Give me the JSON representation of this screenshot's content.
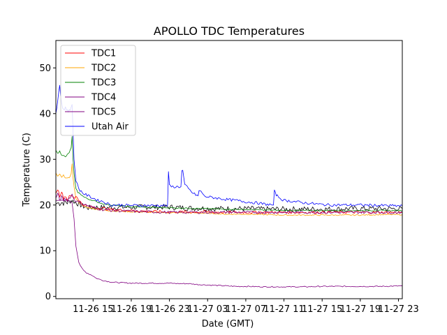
{
  "chart_data": {
    "type": "line",
    "title": "APOLLO TDC Temperatures",
    "xlabel": "Date (GMT)",
    "ylabel": "Temperature (C)",
    "x_unit": "hours since 11-26 11:00 GMT",
    "xlim": [
      0.1,
      36.4
    ],
    "ylim": [
      -0.5,
      56
    ],
    "y_ticks": [
      0,
      10,
      20,
      30,
      40,
      50
    ],
    "x_ticks": [
      {
        "x": 4,
        "label": "11-26 15"
      },
      {
        "x": 8,
        "label": "11-26 19"
      },
      {
        "x": 12,
        "label": "11-26 23"
      },
      {
        "x": 16,
        "label": "11-27 03"
      },
      {
        "x": 20,
        "label": "11-27 07"
      },
      {
        "x": 24,
        "label": "11-27 11"
      },
      {
        "x": 28,
        "label": "11-27 15"
      },
      {
        "x": 32,
        "label": "11-27 19"
      },
      {
        "x": 36,
        "label": "11-27 23"
      }
    ],
    "legend_position": "top-left",
    "series": [
      {
        "name": "TDC1",
        "color": "#ff0000",
        "x": [
          0.1,
          0.3,
          0.5,
          0.7,
          0.9,
          1.1,
          1.3,
          1.5,
          1.8,
          2.0,
          2.2,
          2.4,
          2.6,
          2.8,
          3.0,
          3.5,
          4.0,
          4.5,
          5.0,
          5.5,
          6.0,
          7.0,
          8.0,
          9.0,
          10.0,
          12.0,
          14.0,
          16.0,
          18.0,
          20.0,
          22.0,
          24.0,
          26.0,
          28.0,
          30.0,
          32.0,
          34.0,
          36.4
        ],
        "y": [
          22.5,
          23.5,
          22.0,
          23.0,
          21.5,
          22.0,
          21.2,
          21.8,
          22.0,
          21.5,
          22.0,
          21.5,
          20.8,
          20.4,
          20.0,
          19.7,
          19.5,
          19.4,
          19.3,
          19.1,
          19.0,
          18.9,
          18.8,
          18.7,
          18.6,
          18.5,
          18.5,
          18.5,
          18.4,
          18.4,
          18.4,
          18.4,
          18.4,
          18.4,
          18.4,
          18.4,
          18.4,
          18.4
        ]
      },
      {
        "name": "TDC2",
        "color": "#ffa500",
        "x": [
          0.1,
          0.3,
          0.5,
          0.7,
          0.9,
          1.1,
          1.3,
          1.5,
          1.7,
          1.8,
          1.9,
          2.0,
          2.2,
          2.4,
          2.6,
          2.8,
          3.0,
          3.5,
          4.0,
          4.5,
          5.0,
          6.0,
          7.0,
          8.0,
          10.0,
          12.0,
          14.0,
          16.0,
          18.0,
          20.0,
          22.0,
          24.0,
          26.0,
          28.0,
          30.0,
          32.0,
          34.0,
          36.4
        ],
        "y": [
          27.0,
          26.2,
          26.8,
          26.0,
          26.5,
          26.0,
          25.8,
          26.0,
          26.8,
          29.0,
          26.0,
          24.0,
          21.5,
          20.8,
          20.4,
          20.0,
          19.8,
          19.4,
          19.2,
          19.0,
          18.9,
          18.7,
          18.6,
          18.5,
          18.4,
          18.3,
          18.3,
          18.2,
          18.0,
          18.0,
          17.9,
          17.8,
          17.8,
          17.8,
          17.8,
          17.8,
          17.9,
          17.9
        ]
      },
      {
        "name": "TDC3",
        "color": "#008000",
        "x": [
          0.1,
          0.3,
          0.5,
          0.7,
          0.9,
          1.1,
          1.3,
          1.5,
          1.7,
          1.8,
          1.9,
          2.0,
          2.2,
          2.4,
          2.6,
          2.8,
          3.0,
          3.5,
          4.0,
          4.5,
          5.0,
          5.5,
          6.0,
          7.0,
          8.0,
          10.0,
          12.0,
          14.0,
          16.0,
          18.0,
          20.0,
          22.0,
          24.0,
          26.0,
          28.0,
          30.0,
          32.0,
          34.0,
          36.4
        ],
        "y": [
          32.0,
          31.2,
          31.8,
          31.0,
          30.8,
          30.5,
          31.0,
          31.5,
          32.5,
          35.0,
          30.0,
          27.0,
          23.5,
          22.8,
          22.5,
          22.2,
          21.8,
          21.3,
          21.0,
          20.6,
          20.3,
          20.1,
          20.0,
          19.8,
          19.6,
          19.5,
          19.4,
          19.3,
          19.2,
          19.1,
          19.0,
          18.9,
          18.8,
          18.8,
          18.8,
          18.8,
          18.8,
          18.8,
          18.8
        ]
      },
      {
        "name": "TDC4",
        "color": "#800080",
        "x": [
          0.1,
          0.5,
          1.0,
          1.5,
          1.8,
          2.0,
          2.2,
          2.5,
          2.8,
          3.0,
          3.3,
          3.6,
          4.0,
          4.3,
          4.6,
          5.0,
          5.5,
          6.0,
          7.0,
          8.0,
          9.0,
          10.0,
          11.0,
          12.0,
          13.0,
          14.0,
          15.0,
          16.0,
          17.0,
          18.0,
          19.0,
          20.0,
          22.0,
          24.0,
          26.0,
          28.0,
          30.0,
          32.0,
          34.0,
          36.4
        ],
        "y": [
          21.0,
          21.0,
          21.0,
          21.0,
          20.5,
          17.0,
          11.0,
          7.5,
          6.2,
          5.7,
          5.2,
          4.9,
          4.5,
          4.0,
          3.8,
          3.5,
          3.3,
          3.1,
          3.0,
          2.9,
          2.9,
          2.9,
          2.9,
          2.9,
          2.8,
          2.8,
          2.6,
          2.5,
          2.4,
          2.3,
          2.2,
          2.2,
          2.1,
          2.1,
          2.1,
          2.2,
          2.2,
          2.2,
          2.2,
          2.3
        ]
      },
      {
        "name": "TDC5",
        "color": "#800080",
        "x": [
          0.1,
          0.3,
          0.5,
          0.7,
          0.9,
          1.1,
          1.3,
          1.5,
          1.7,
          1.8,
          2.0,
          2.2,
          2.5,
          3.0,
          3.5,
          4.0,
          4.5,
          5.0,
          6.0,
          7.0,
          8.0,
          10.0,
          12.0,
          14.0,
          16.0,
          18.0,
          20.0,
          22.0,
          24.0,
          26.0,
          28.0,
          30.0,
          32.0,
          34.0,
          36.4
        ],
        "y": [
          21.5,
          22.5,
          21.0,
          21.8,
          21.0,
          21.5,
          21.0,
          21.5,
          22.0,
          22.3,
          21.3,
          20.9,
          20.6,
          20.2,
          19.8,
          19.5,
          19.2,
          19.0,
          18.8,
          18.7,
          18.6,
          18.5,
          18.4,
          18.4,
          18.4,
          18.4,
          18.4,
          18.4,
          18.4,
          18.4,
          18.4,
          18.4,
          18.4,
          18.4,
          18.4
        ]
      },
      {
        "name": "Utah Air",
        "color": "#0000ff",
        "x": [
          0.1,
          0.2,
          0.3,
          0.4,
          0.5,
          0.6,
          0.7,
          0.8,
          0.9,
          1.0,
          1.1,
          1.2,
          1.4,
          1.6,
          1.7,
          1.8,
          1.9,
          2.0,
          2.2,
          2.5,
          3.0,
          3.5,
          4.0,
          4.5,
          5.0,
          5.5,
          6.0,
          7.0,
          8.0,
          9.0,
          10.0,
          11.0,
          11.8,
          11.9,
          12.0,
          12.2,
          12.5,
          12.8,
          13.0,
          13.2,
          13.3,
          13.4,
          13.6,
          13.8,
          14.0,
          14.5,
          15.0,
          15.1,
          15.2,
          15.4,
          15.6,
          16.0,
          17.0,
          18.0,
          19.0,
          20.0,
          21.0,
          22.0,
          22.9,
          23.0,
          23.1,
          23.3,
          23.6,
          24.0,
          25.0,
          26.0,
          27.0,
          28.0,
          29.0,
          30.0,
          32.0,
          34.0,
          36.4
        ],
        "y": [
          40.0,
          41.0,
          43.0,
          44.5,
          46.3,
          44.0,
          42.5,
          41.5,
          41.0,
          40.8,
          41.5,
          41.0,
          40.5,
          40.8,
          41.5,
          42.0,
          36.0,
          30.0,
          25.5,
          23.5,
          22.5,
          22.0,
          21.5,
          21.0,
          20.8,
          20.3,
          20.0,
          20.0,
          19.9,
          19.9,
          19.9,
          19.9,
          19.9,
          27.3,
          24.2,
          24.0,
          24.0,
          24.0,
          24.0,
          24.0,
          27.4,
          27.6,
          24.5,
          24.0,
          23.5,
          22.5,
          22.0,
          23.0,
          23.1,
          22.8,
          22.0,
          21.8,
          21.5,
          21.2,
          21.0,
          20.7,
          20.5,
          20.2,
          20.0,
          23.0,
          22.5,
          22.0,
          21.5,
          21.0,
          20.8,
          20.5,
          20.3,
          20.1,
          20.0,
          20.0,
          20.0,
          19.9,
          19.8
        ]
      },
      {
        "name": "black trace",
        "color": "#000000",
        "x": [
          0.1,
          0.3,
          0.5,
          0.7,
          0.9,
          1.1,
          1.3,
          1.5,
          1.7,
          1.9,
          2.1,
          2.3,
          2.5,
          2.7,
          2.9,
          3.1,
          3.3,
          3.5,
          4.5,
          5.5,
          6.5,
          7.5,
          8.5,
          9.5,
          10.5,
          11.5,
          12.5,
          13.5,
          14.5,
          15.5,
          16.5,
          17.5,
          18.5,
          19.5,
          20.5,
          21.5,
          22.5,
          23.5,
          24.5,
          25.5,
          26.5,
          27.5,
          28.5,
          29.5,
          30.5,
          31.5,
          32.5,
          33.5,
          34.5,
          35.5,
          36.4
        ],
        "y": [
          20.2,
          20.5,
          20.3,
          20.6,
          20.4,
          20.7,
          20.5,
          20.8,
          21.0,
          20.9,
          20.6,
          20.4,
          20.2,
          20.0,
          19.8,
          19.6,
          19.5,
          19.4,
          19.5,
          19.4,
          19.5,
          19.5,
          19.5,
          19.6,
          19.5,
          19.6,
          19.5,
          19.4,
          19.3,
          19.3,
          19.2,
          19.2,
          19.2,
          19.2,
          19.2,
          19.1,
          19.1,
          19.1,
          19.1,
          19.1,
          19.1,
          19.1,
          19.1,
          19.1,
          19.2,
          19.2,
          19.2,
          19.2,
          19.2,
          19.2,
          19.2
        ]
      }
    ],
    "wiggle_amp": {
      "Utah Air": 0.3,
      "black trace": 0.6,
      "TDC1": 0.3,
      "TDC5": 0.3
    }
  }
}
